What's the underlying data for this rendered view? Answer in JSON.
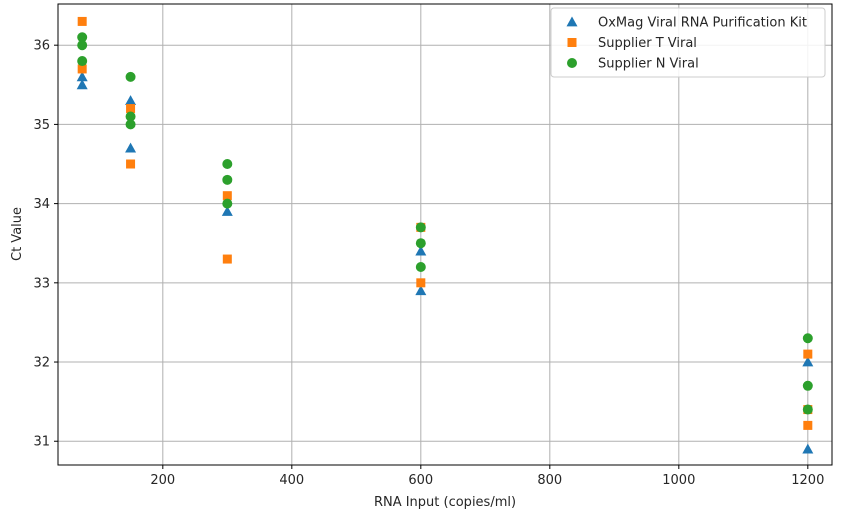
{
  "chart_data": {
    "type": "scatter",
    "title": "",
    "xlabel": "RNA Input (copies/ml)",
    "ylabel": "Ct Value",
    "xlim": [
      37.5,
      1237.5
    ],
    "ylim": [
      30.7,
      36.52
    ],
    "xticks": [
      200,
      400,
      600,
      800,
      1000,
      1200
    ],
    "yticks": [
      31,
      32,
      33,
      34,
      35,
      36
    ],
    "grid": true,
    "legend_position": "top-right",
    "series": [
      {
        "name": "OxMag Viral RNA Purification Kit",
        "marker": "triangle",
        "color": "#1f77b4",
        "points": [
          [
            75,
            35.6
          ],
          [
            75,
            35.5
          ],
          [
            150,
            35.3
          ],
          [
            150,
            34.7
          ],
          [
            300,
            33.9
          ],
          [
            600,
            33.4
          ],
          [
            600,
            32.9
          ],
          [
            1200,
            32.0
          ],
          [
            1200,
            30.9
          ]
        ]
      },
      {
        "name": "Supplier T Viral",
        "marker": "square",
        "color": "#ff7f0e",
        "points": [
          [
            75,
            36.3
          ],
          [
            75,
            35.7
          ],
          [
            150,
            35.2
          ],
          [
            150,
            34.5
          ],
          [
            300,
            34.1
          ],
          [
            300,
            33.3
          ],
          [
            600,
            33.7
          ],
          [
            600,
            33.0
          ],
          [
            1200,
            32.1
          ],
          [
            1200,
            31.4
          ],
          [
            1200,
            31.2
          ]
        ]
      },
      {
        "name": "Supplier N Viral",
        "marker": "circle",
        "color": "#2ca02c",
        "points": [
          [
            75,
            36.1
          ],
          [
            75,
            36.0
          ],
          [
            75,
            35.8
          ],
          [
            150,
            35.6
          ],
          [
            150,
            35.1
          ],
          [
            150,
            35.0
          ],
          [
            300,
            34.5
          ],
          [
            300,
            34.3
          ],
          [
            300,
            34.0
          ],
          [
            600,
            33.7
          ],
          [
            600,
            33.5
          ],
          [
            600,
            33.2
          ],
          [
            1200,
            32.3
          ],
          [
            1200,
            31.7
          ],
          [
            1200,
            31.4
          ]
        ]
      }
    ]
  }
}
